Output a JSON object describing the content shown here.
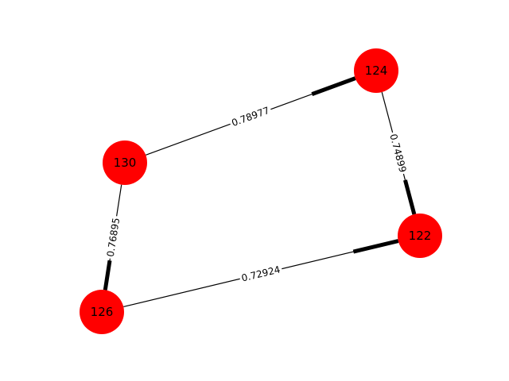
{
  "graph": {
    "node_color": "#ff0000",
    "edge_color": "#000000",
    "nodes": [
      {
        "id": "124",
        "label": "124"
      },
      {
        "id": "130",
        "label": "130"
      },
      {
        "id": "122",
        "label": "122"
      },
      {
        "id": "126",
        "label": "126"
      }
    ],
    "edges": [
      {
        "source": "130",
        "target": "124",
        "label": "0.78977"
      },
      {
        "source": "124",
        "target": "122",
        "label": "0.74899"
      },
      {
        "source": "126",
        "target": "122",
        "label": "0.72924"
      },
      {
        "source": "130",
        "target": "126",
        "label": "0.76895"
      }
    ]
  }
}
